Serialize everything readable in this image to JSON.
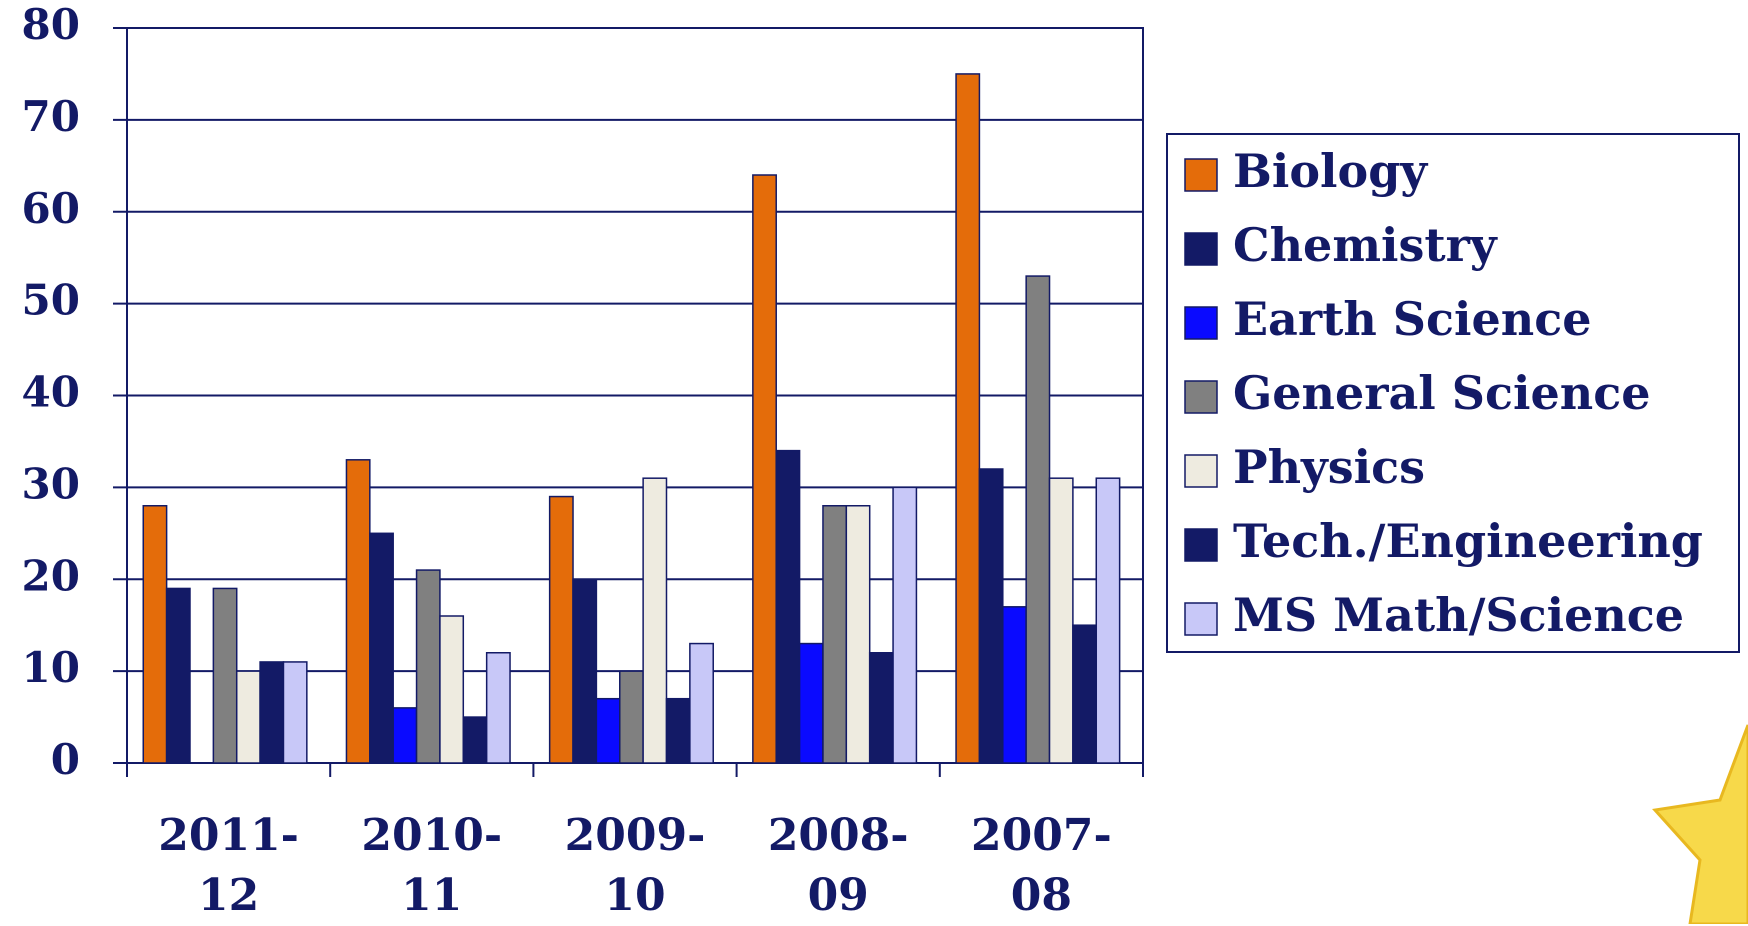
{
  "chart_data": {
    "type": "bar",
    "categories": [
      "2011-\n12",
      "2010-\n11",
      "2009-\n10",
      "2008-\n09",
      "2007-\n08"
    ],
    "series": [
      {
        "name": "Biology",
        "color": "#e46c0a",
        "values": [
          28,
          33,
          29,
          64,
          75
        ]
      },
      {
        "name": "Chemistry",
        "color": "#131a66",
        "values": [
          19,
          25,
          20,
          34,
          32
        ]
      },
      {
        "name": "Earth Science",
        "color": "#0a0aff",
        "values": [
          0,
          6,
          7,
          13,
          17
        ]
      },
      {
        "name": "General Science",
        "color": "#808080",
        "values": [
          19,
          21,
          10,
          28,
          53
        ]
      },
      {
        "name": "Physics",
        "color": "#eeebe0",
        "values": [
          10,
          16,
          31,
          28,
          31
        ]
      },
      {
        "name": "Tech./Engineering",
        "color": "#131a66",
        "values": [
          11,
          5,
          7,
          12,
          15
        ]
      },
      {
        "name": "MS Math/Science",
        "color": "#c8c8f8",
        "values": [
          11,
          12,
          13,
          30,
          31
        ]
      }
    ],
    "ylim": [
      0,
      80
    ],
    "yticks": [
      0,
      10,
      20,
      30,
      40,
      50,
      60,
      70,
      80
    ],
    "grid": true,
    "legend": "right"
  }
}
